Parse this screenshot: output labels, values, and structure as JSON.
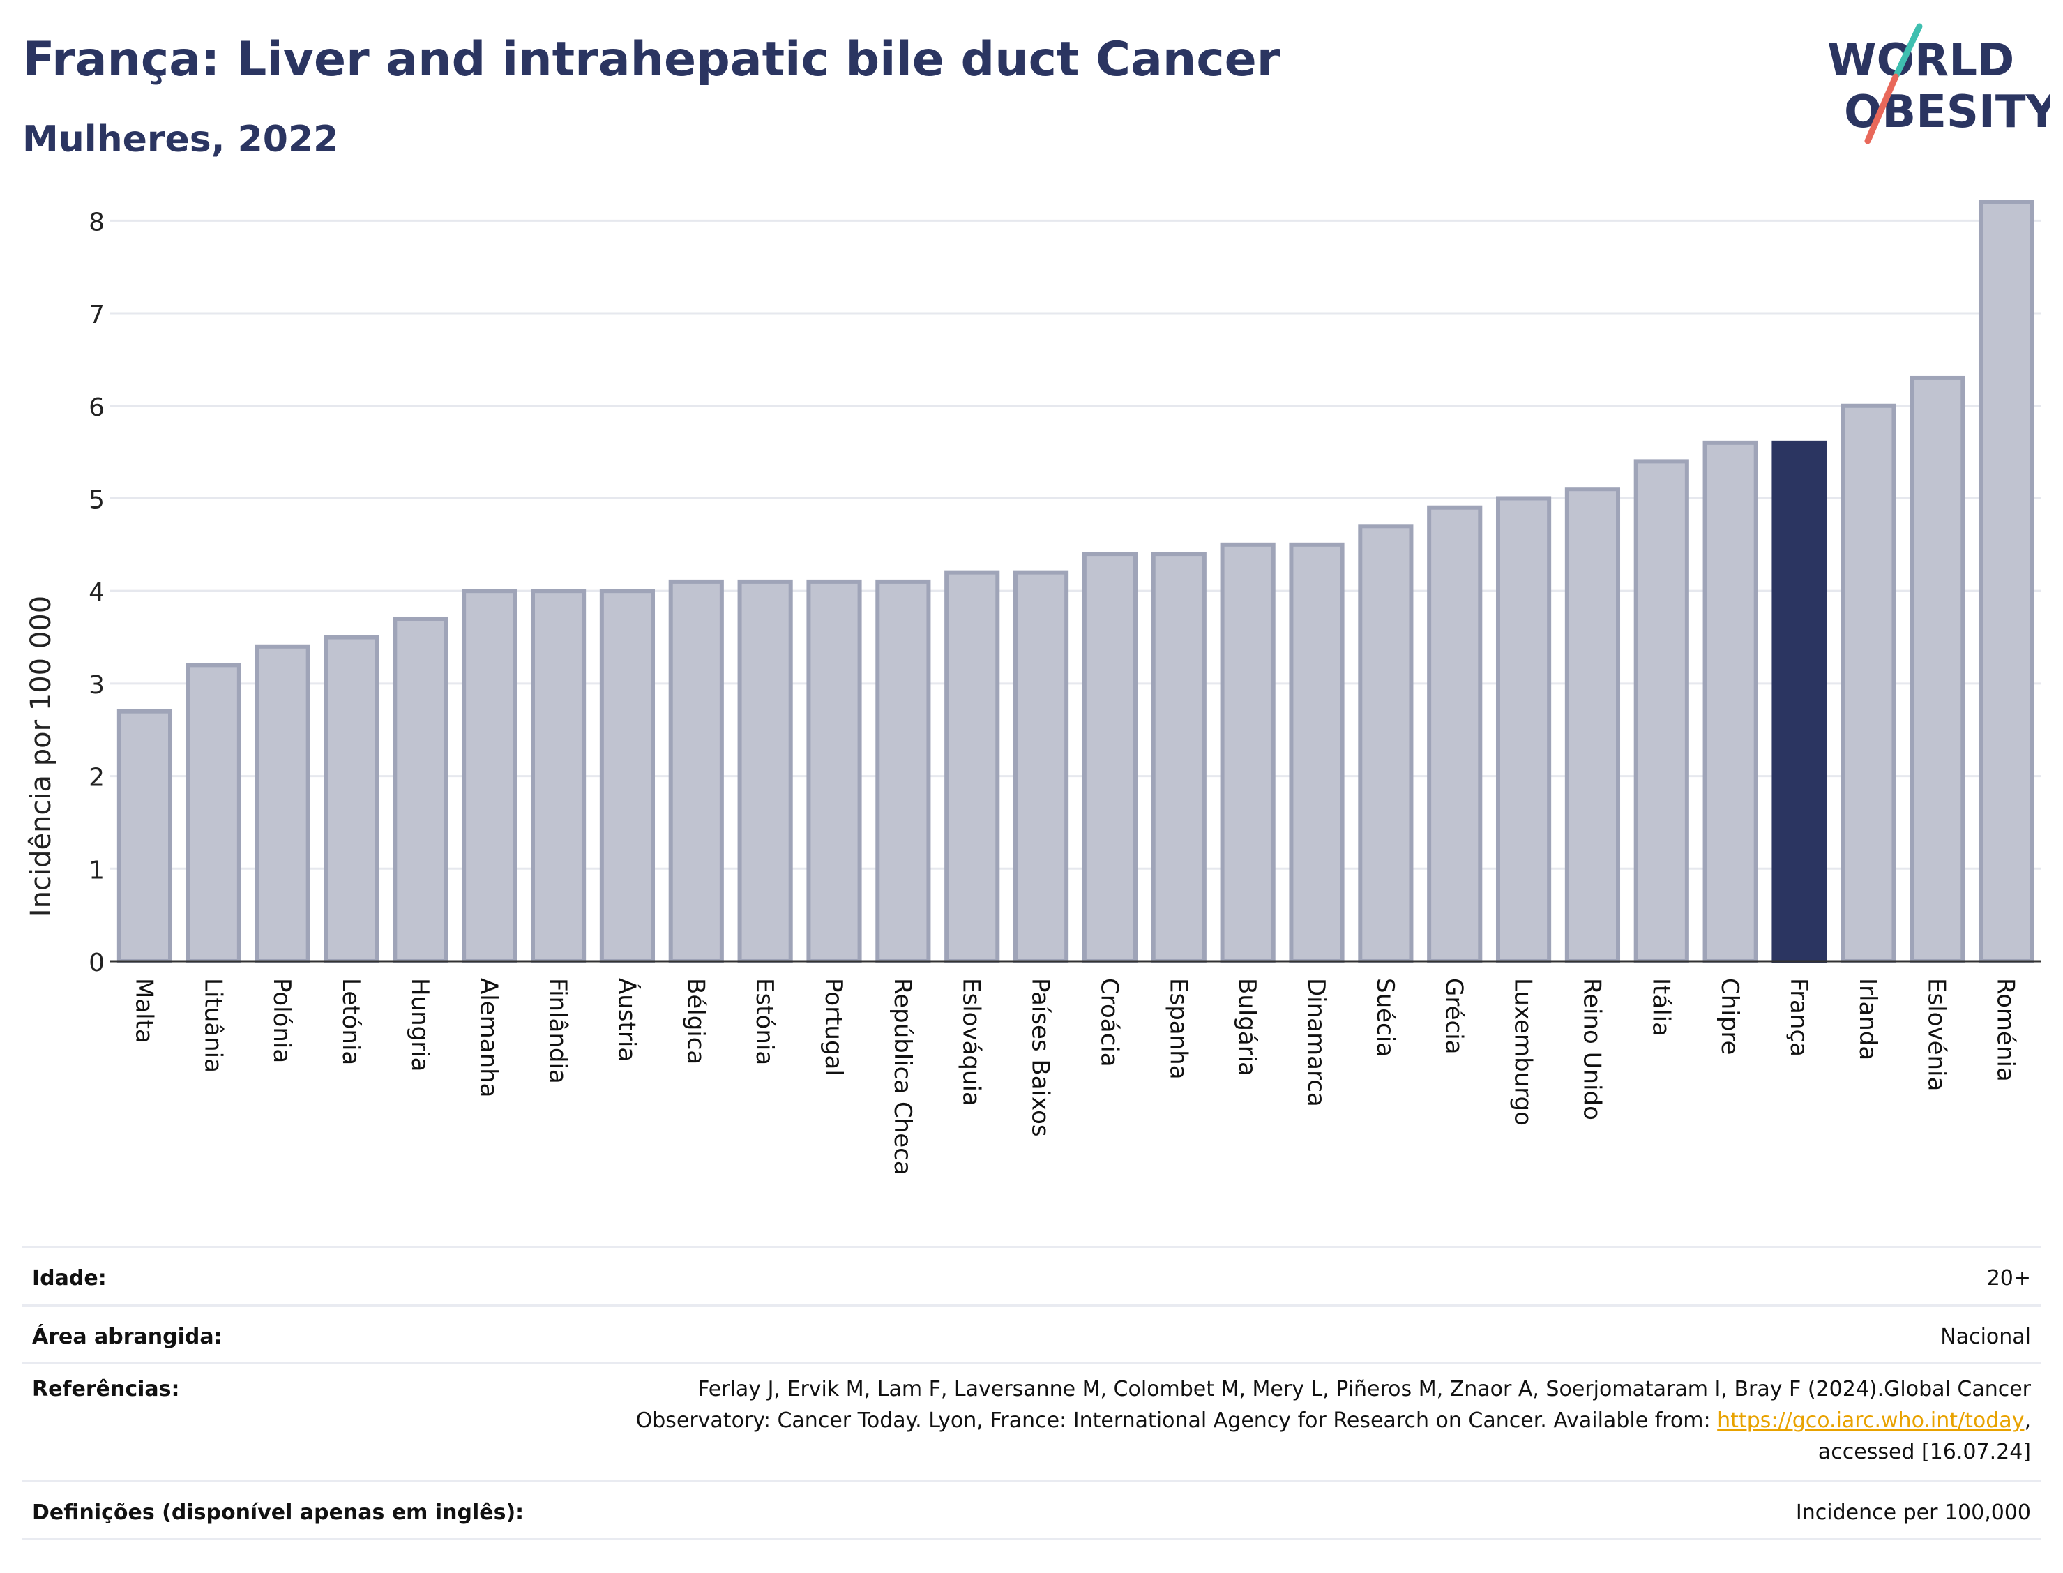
{
  "title": "França: Liver and intrahepatic bile duct Cancer",
  "subtitle": "Mulheres, 2022",
  "logo": {
    "line1": "WORLD",
    "line2": "OBESITY",
    "colors": {
      "text": "#2b3561",
      "slash_teal": "#3fbfb0",
      "slash_red": "#e8685a"
    }
  },
  "chart_data": {
    "type": "bar",
    "ylabel": "Incidência por 100 000",
    "ylim": [
      0,
      8.5
    ],
    "yticks": [
      0,
      1,
      2,
      3,
      4,
      5,
      6,
      7,
      8
    ],
    "grid": true,
    "highlight": "França",
    "colors": {
      "bar_fill": "#c0c3d0",
      "bar_stroke": "#9fa4b8",
      "highlight": "#2b3561",
      "grid": "#e6e8ee",
      "axis": "#333333"
    },
    "categories": [
      "Malta",
      "Lituânia",
      "Polónia",
      "Letónia",
      "Hungria",
      "Alemanha",
      "Finlândia",
      "Áustria",
      "Bélgica",
      "Estónia",
      "Portugal",
      "República Checa",
      "Eslováquia",
      "Países Baixos",
      "Croácia",
      "Espanha",
      "Bulgária",
      "Dinamarca",
      "Suécia",
      "Grécia",
      "Luxemburgo",
      "Reino Unido",
      "Itália",
      "Chipre",
      "França",
      "Irlanda",
      "Eslovénia",
      "Roménia"
    ],
    "values": [
      2.7,
      3.2,
      3.4,
      3.5,
      3.7,
      4.0,
      4.0,
      4.0,
      4.1,
      4.1,
      4.1,
      4.1,
      4.2,
      4.2,
      4.4,
      4.4,
      4.5,
      4.5,
      4.7,
      4.9,
      5.0,
      5.1,
      5.4,
      5.6,
      5.6,
      6.0,
      6.3,
      8.2
    ]
  },
  "info": {
    "age_label": "Idade:",
    "age_value": "20+",
    "area_label": "Área abrangida:",
    "area_value": "Nacional",
    "ref_label": "Referências:",
    "ref_line1": "Ferlay J, Ervik M, Lam F, Laversanne M, Colombet M, Mery L, Piñeros M, Znaor A, Soerjomataram I, Bray F (2024).Global Cancer",
    "ref_line2_pre": "Observatory: Cancer Today. Lyon, France: International Agency for Research on Cancer. Available from: ",
    "ref_link": "https://gco.iarc.who.int/today",
    "ref_line2_post": ",",
    "ref_line3": "accessed [16.07.24]",
    "def_label": "Definições (disponível apenas em inglês):",
    "def_value": "Incidence per 100,000"
  }
}
